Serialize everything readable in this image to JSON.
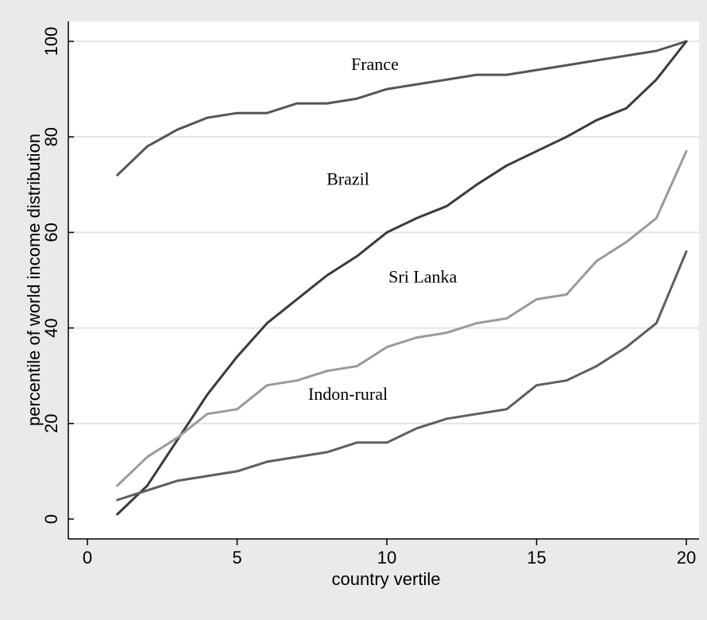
{
  "chart_data": {
    "type": "line",
    "title": "",
    "xlabel": "country vertile",
    "ylabel": "percentile of world income distribution",
    "xlim": [
      0,
      20
    ],
    "ylim": [
      0,
      100
    ],
    "xticks": [
      0,
      5,
      10,
      15,
      20
    ],
    "yticks": [
      0,
      20,
      40,
      60,
      80,
      100
    ],
    "grid": "horizontal",
    "legend": "none (direct labels)",
    "x": [
      1,
      2,
      3,
      4,
      5,
      6,
      7,
      8,
      9,
      10,
      11,
      12,
      13,
      14,
      15,
      16,
      17,
      18,
      19,
      20
    ],
    "series": [
      {
        "name": "France",
        "color": "#555555",
        "values": [
          72,
          78,
          81.5,
          84,
          85,
          85,
          87,
          87,
          88,
          90,
          91,
          92,
          93,
          93,
          94,
          95,
          96,
          97,
          98,
          100
        ]
      },
      {
        "name": "Brazil",
        "color": "#3a3a3a",
        "values": [
          1,
          7,
          16.5,
          26,
          34,
          41,
          46,
          51,
          55,
          60,
          63,
          65.5,
          70,
          74,
          77,
          80,
          83.5,
          86,
          92,
          100
        ]
      },
      {
        "name": "Sri Lanka",
        "color": "#9a9a9a",
        "values": [
          7,
          13,
          17,
          22,
          23,
          28,
          29,
          31,
          32,
          36,
          38,
          39,
          41,
          42,
          46,
          47,
          54,
          58,
          63,
          77
        ]
      },
      {
        "name": "Indon-rural",
        "color": "#5e5e5e",
        "values": [
          4,
          6,
          8,
          9,
          10,
          12,
          13,
          14,
          16,
          16,
          19,
          21,
          22,
          23,
          28,
          29,
          32,
          36,
          41,
          56
        ]
      }
    ],
    "annotations": [
      {
        "text": "France",
        "x": 9.6,
        "y": 94
      },
      {
        "text": "Brazil",
        "x": 8.7,
        "y": 70
      },
      {
        "text": "Sri Lanka",
        "x": 11.2,
        "y": 49.5
      },
      {
        "text": "Indon-rural",
        "x": 8.7,
        "y": 25
      }
    ]
  }
}
